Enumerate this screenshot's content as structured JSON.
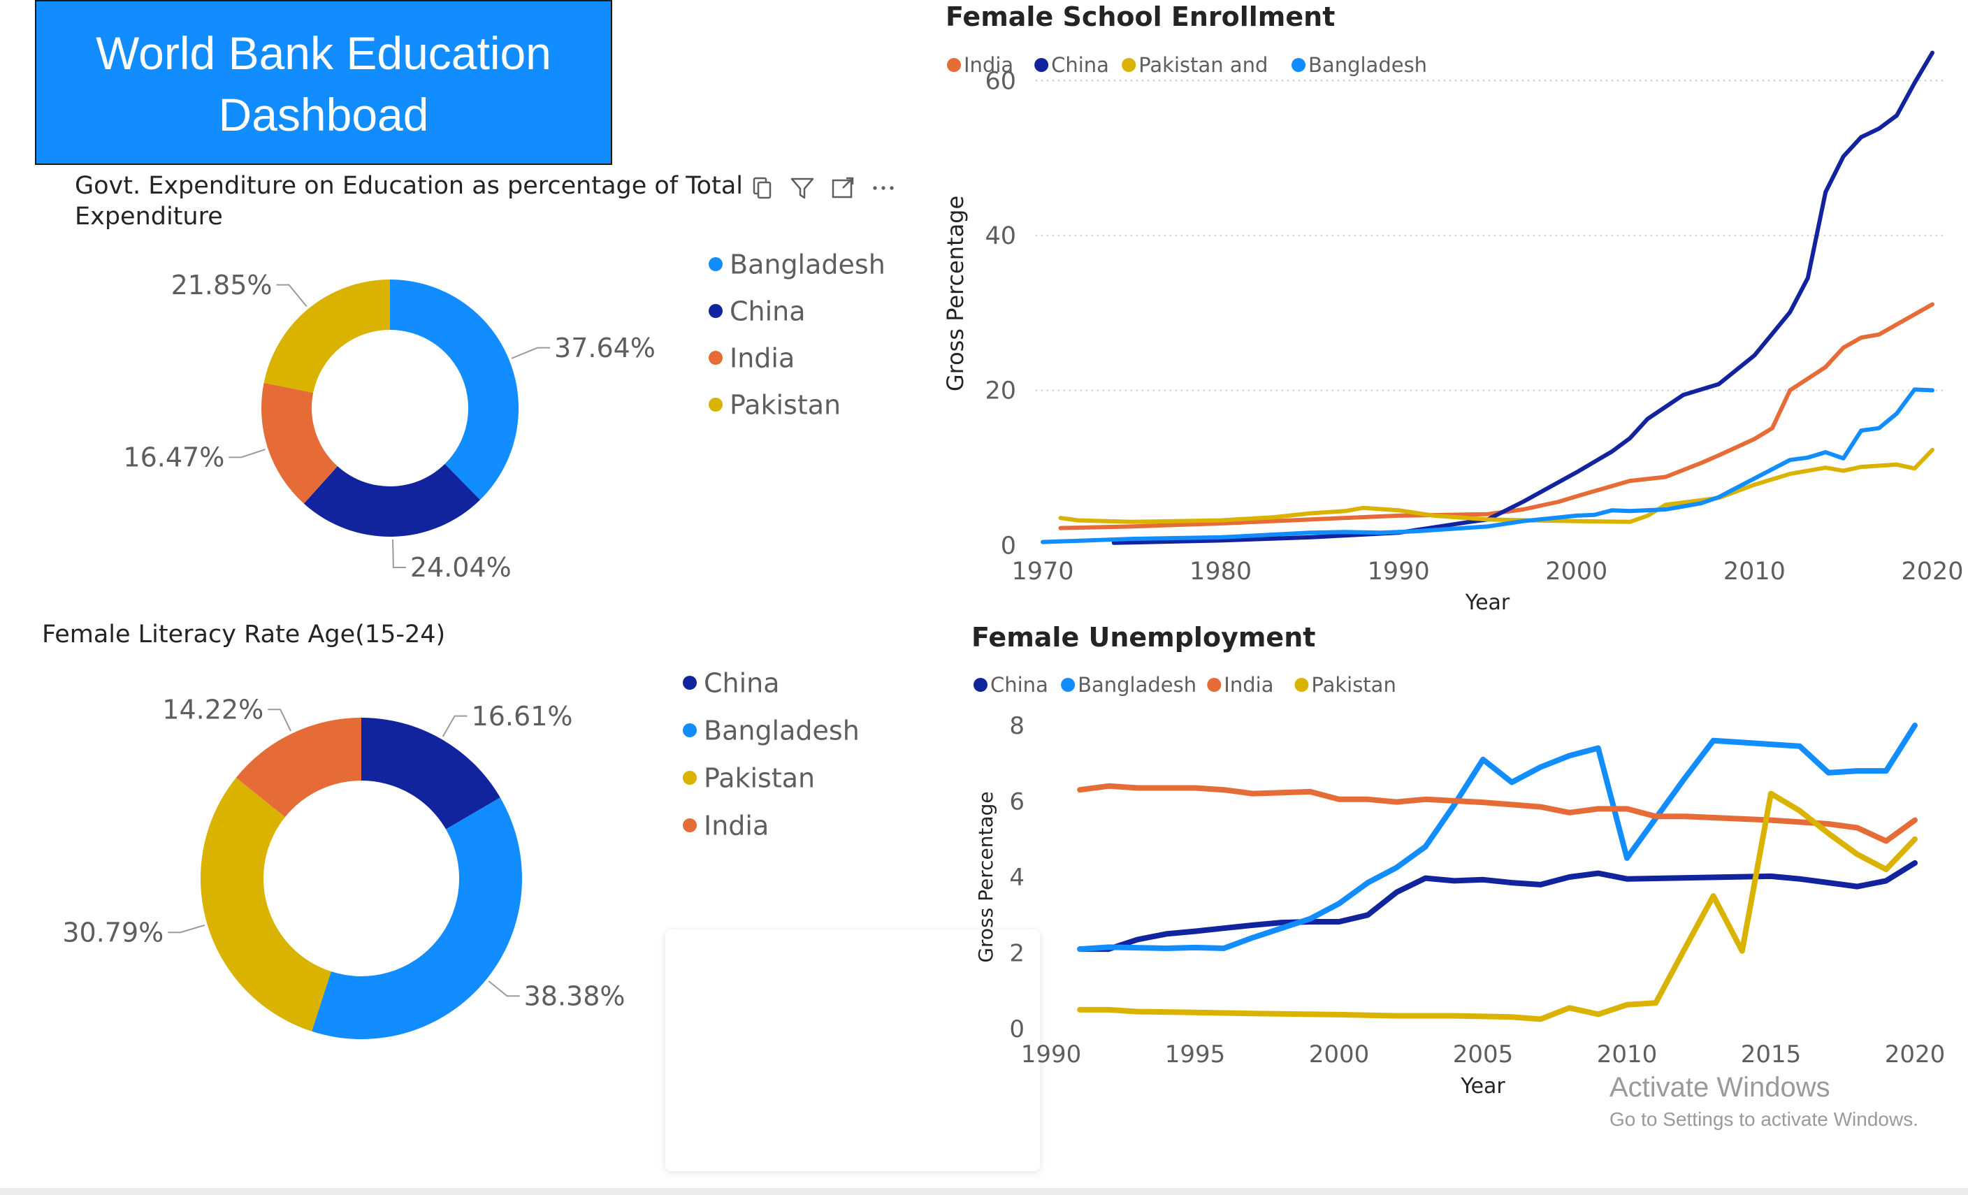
{
  "dashboard": {
    "title_line1": "World Bank Education",
    "title_line2": "Dashboad",
    "watermark_title": "Activate Windows",
    "watermark_sub": "Go to Settings to activate Windows."
  },
  "icons": [
    "copy-icon",
    "filter-icon",
    "focus-mode-icon",
    "more-options-icon"
  ],
  "colors": {
    "bangladesh": "#118dff",
    "china": "#12239e",
    "india": "#e66c37",
    "pakistan": "#d9b300",
    "header_bg": "#118dff"
  },
  "chart_data": [
    {
      "id": "expenditure",
      "type": "pie",
      "subtype": "donut",
      "title_line1": "Govt. Expenditure on Education as percentage of Total",
      "title_line2": "Expenditure",
      "legend": [
        "Bangladesh",
        "China",
        "India",
        "Pakistan"
      ],
      "slices": [
        {
          "name": "Bangladesh",
          "value": 37.64,
          "label": "37.64%",
          "color": "#118dff"
        },
        {
          "name": "China",
          "value": 24.04,
          "label": "24.04%",
          "color": "#12239e"
        },
        {
          "name": "India",
          "value": 16.47,
          "label": "16.47%",
          "color": "#e66c37"
        },
        {
          "name": "Pakistan",
          "value": 21.85,
          "label": "21.85%",
          "color": "#d9b300"
        }
      ]
    },
    {
      "id": "literacy",
      "type": "pie",
      "subtype": "donut",
      "title": "Female Literacy Rate Age(15-24)",
      "legend": [
        "China",
        "Bangladesh",
        "Pakistan",
        "India"
      ],
      "slices": [
        {
          "name": "China",
          "value": 16.61,
          "label": "16.61%",
          "color": "#12239e"
        },
        {
          "name": "Bangladesh",
          "value": 38.38,
          "label": "38.38%",
          "color": "#118dff"
        },
        {
          "name": "Pakistan",
          "value": 30.79,
          "label": "30.79%",
          "color": "#d9b300"
        },
        {
          "name": "India",
          "value": 14.22,
          "label": "14.22%",
          "color": "#e66c37"
        }
      ]
    },
    {
      "id": "enrollment",
      "type": "line",
      "title": "Female School Enrollment",
      "legend": [
        "India",
        "China",
        "Pakistan and",
        "Bangladesh"
      ],
      "xlabel": "Year",
      "ylabel": "Gross Percentage",
      "xlim": [
        1970,
        2020
      ],
      "ylim": [
        0,
        65
      ],
      "xticks": [
        "1970",
        "1980",
        "1990",
        "2000",
        "2010",
        "2020"
      ],
      "yticks": [
        "0",
        "20",
        "40",
        "60"
      ],
      "grid": true,
      "series": [
        {
          "name": "India",
          "color": "#e66c37",
          "points": [
            [
              1971,
              2.2
            ],
            [
              1975,
              2.4
            ],
            [
              1980,
              2.8
            ],
            [
              1985,
              3.3
            ],
            [
              1990,
              3.8
            ],
            [
              1995,
              4.0
            ],
            [
              1997,
              4.6
            ],
            [
              1999,
              5.6
            ],
            [
              2000,
              6.3
            ],
            [
              2003,
              8.3
            ],
            [
              2005,
              8.8
            ],
            [
              2007,
              10.6
            ],
            [
              2008,
              11.6
            ],
            [
              2010,
              13.7
            ],
            [
              2011,
              15.1
            ],
            [
              2012,
              20.0
            ],
            [
              2014,
              23.0
            ],
            [
              2015,
              25.5
            ],
            [
              2016,
              26.8
            ],
            [
              2017,
              27.2
            ],
            [
              2019,
              29.8
            ],
            [
              2020,
              31.1
            ]
          ]
        },
        {
          "name": "China",
          "color": "#12239e",
          "points": [
            [
              1974,
              0.3
            ],
            [
              1980,
              0.6
            ],
            [
              1985,
              1.0
            ],
            [
              1990,
              1.6
            ],
            [
              1994,
              3.0
            ],
            [
              1995,
              3.3
            ],
            [
              1997,
              5.6
            ],
            [
              2000,
              9.4
            ],
            [
              2002,
              12.1
            ],
            [
              2003,
              13.8
            ],
            [
              2004,
              16.3
            ],
            [
              2006,
              19.4
            ],
            [
              2008,
              20.8
            ],
            [
              2010,
              24.5
            ],
            [
              2011,
              27.3
            ],
            [
              2012,
              30.1
            ],
            [
              2013,
              34.5
            ],
            [
              2014,
              45.6
            ],
            [
              2015,
              50.2
            ],
            [
              2016,
              52.7
            ],
            [
              2017,
              53.8
            ],
            [
              2018,
              55.5
            ],
            [
              2019,
              59.7
            ],
            [
              2020,
              63.6
            ]
          ]
        },
        {
          "name": "Pakistan",
          "color": "#d9b300",
          "points": [
            [
              1971,
              3.5
            ],
            [
              1972,
              3.2
            ],
            [
              1975,
              3.0
            ],
            [
              1980,
              3.2
            ],
            [
              1983,
              3.6
            ],
            [
              1985,
              4.1
            ],
            [
              1987,
              4.4
            ],
            [
              1988,
              4.8
            ],
            [
              1990,
              4.5
            ],
            [
              1992,
              3.8
            ],
            [
              1995,
              3.3
            ],
            [
              2000,
              3.1
            ],
            [
              2003,
              3.0
            ],
            [
              2004,
              3.8
            ],
            [
              2005,
              5.2
            ],
            [
              2007,
              5.8
            ],
            [
              2008,
              6.1
            ],
            [
              2010,
              7.8
            ],
            [
              2012,
              9.2
            ],
            [
              2014,
              10.0
            ],
            [
              2015,
              9.6
            ],
            [
              2016,
              10.1
            ],
            [
              2018,
              10.4
            ],
            [
              2019,
              9.9
            ],
            [
              2020,
              12.3
            ]
          ]
        },
        {
          "name": "Bangladesh",
          "color": "#118dff",
          "points": [
            [
              1970,
              0.4
            ],
            [
              1975,
              0.8
            ],
            [
              1980,
              1.0
            ],
            [
              1985,
              1.6
            ],
            [
              1987,
              1.7
            ],
            [
              1989,
              1.6
            ],
            [
              1991,
              1.8
            ],
            [
              1995,
              2.4
            ],
            [
              1997,
              3.1
            ],
            [
              2000,
              3.8
            ],
            [
              2001,
              3.9
            ],
            [
              2002,
              4.5
            ],
            [
              2003,
              4.4
            ],
            [
              2005,
              4.6
            ],
            [
              2007,
              5.4
            ],
            [
              2008,
              6.2
            ],
            [
              2010,
              8.6
            ],
            [
              2012,
              11.0
            ],
            [
              2013,
              11.3
            ],
            [
              2014,
              12.0
            ],
            [
              2015,
              11.2
            ],
            [
              2016,
              14.8
            ],
            [
              2017,
              15.1
            ],
            [
              2018,
              17.0
            ],
            [
              2019,
              20.1
            ],
            [
              2020,
              20.0
            ]
          ]
        }
      ]
    },
    {
      "id": "unemployment",
      "type": "line",
      "title": "Female Unemployment",
      "legend": [
        "China",
        "Bangladesh",
        "India",
        "Pakistan"
      ],
      "xlabel": "Year",
      "ylabel": "Gross Percentage",
      "xlim": [
        1990,
        2020
      ],
      "ylim": [
        0,
        8
      ],
      "xticks": [
        "1990",
        "1995",
        "2000",
        "2005",
        "2010",
        "2015",
        "2020"
      ],
      "yticks": [
        "0",
        "2",
        "4",
        "6",
        "8"
      ],
      "grid": false,
      "series": [
        {
          "name": "China",
          "color": "#12239e",
          "points": [
            [
              1991,
              2.1
            ],
            [
              1992,
              2.1
            ],
            [
              1993,
              2.35
            ],
            [
              1994,
              2.5
            ],
            [
              1995,
              2.57
            ],
            [
              1996,
              2.65
            ],
            [
              1997,
              2.73
            ],
            [
              1998,
              2.8
            ],
            [
              1999,
              2.82
            ],
            [
              2000,
              2.82
            ],
            [
              2001,
              3.0
            ],
            [
              2002,
              3.6
            ],
            [
              2003,
              3.97
            ],
            [
              2004,
              3.9
            ],
            [
              2005,
              3.93
            ],
            [
              2006,
              3.85
            ],
            [
              2007,
              3.8
            ],
            [
              2008,
              4.0
            ],
            [
              2009,
              4.1
            ],
            [
              2010,
              3.95
            ],
            [
              2015,
              4.02
            ],
            [
              2016,
              3.95
            ],
            [
              2017,
              3.85
            ],
            [
              2018,
              3.75
            ],
            [
              2019,
              3.9
            ],
            [
              2020,
              4.37
            ]
          ]
        },
        {
          "name": "Bangladesh",
          "color": "#118dff",
          "points": [
            [
              1991,
              2.1
            ],
            [
              1992,
              2.15
            ],
            [
              1994,
              2.12
            ],
            [
              1995,
              2.14
            ],
            [
              1996,
              2.12
            ],
            [
              1997,
              2.4
            ],
            [
              1999,
              2.9
            ],
            [
              2000,
              3.3
            ],
            [
              2001,
              3.85
            ],
            [
              2002,
              4.25
            ],
            [
              2003,
              4.8
            ],
            [
              2004,
              5.9
            ],
            [
              2005,
              7.1
            ],
            [
              2006,
              6.5
            ],
            [
              2007,
              6.9
            ],
            [
              2008,
              7.2
            ],
            [
              2009,
              7.4
            ],
            [
              2010,
              4.5
            ],
            [
              2011,
              5.55
            ],
            [
              2012,
              6.6
            ],
            [
              2013,
              7.6
            ],
            [
              2014,
              7.55
            ],
            [
              2015,
              7.5
            ],
            [
              2016,
              7.45
            ],
            [
              2017,
              6.75
            ],
            [
              2018,
              6.8
            ],
            [
              2019,
              6.8
            ],
            [
              2020,
              8.0
            ]
          ]
        },
        {
          "name": "India",
          "color": "#e66c37",
          "points": [
            [
              1991,
              6.3
            ],
            [
              1992,
              6.4
            ],
            [
              1993,
              6.35
            ],
            [
              1995,
              6.35
            ],
            [
              1996,
              6.3
            ],
            [
              1997,
              6.2
            ],
            [
              1999,
              6.25
            ],
            [
              2000,
              6.05
            ],
            [
              2001,
              6.05
            ],
            [
              2002,
              5.98
            ],
            [
              2003,
              6.05
            ],
            [
              2005,
              5.97
            ],
            [
              2007,
              5.85
            ],
            [
              2008,
              5.7
            ],
            [
              2009,
              5.8
            ],
            [
              2010,
              5.8
            ],
            [
              2011,
              5.6
            ],
            [
              2012,
              5.6
            ],
            [
              2015,
              5.5
            ],
            [
              2017,
              5.4
            ],
            [
              2018,
              5.3
            ],
            [
              2019,
              4.95
            ],
            [
              2020,
              5.5
            ]
          ]
        },
        {
          "name": "Pakistan",
          "color": "#d9b300",
          "points": [
            [
              1991,
              0.5
            ],
            [
              1992,
              0.5
            ],
            [
              1993,
              0.45
            ],
            [
              1995,
              0.43
            ],
            [
              1997,
              0.4
            ],
            [
              2000,
              0.37
            ],
            [
              2002,
              0.34
            ],
            [
              2004,
              0.34
            ],
            [
              2006,
              0.31
            ],
            [
              2007,
              0.25
            ],
            [
              2008,
              0.55
            ],
            [
              2009,
              0.38
            ],
            [
              2010,
              0.63
            ],
            [
              2011,
              0.68
            ],
            [
              2012,
              2.1
            ],
            [
              2013,
              3.5
            ],
            [
              2014,
              2.05
            ],
            [
              2015,
              6.2
            ],
            [
              2016,
              5.75
            ],
            [
              2017,
              5.15
            ],
            [
              2018,
              4.6
            ],
            [
              2019,
              4.2
            ],
            [
              2020,
              5.0
            ]
          ]
        }
      ]
    }
  ]
}
